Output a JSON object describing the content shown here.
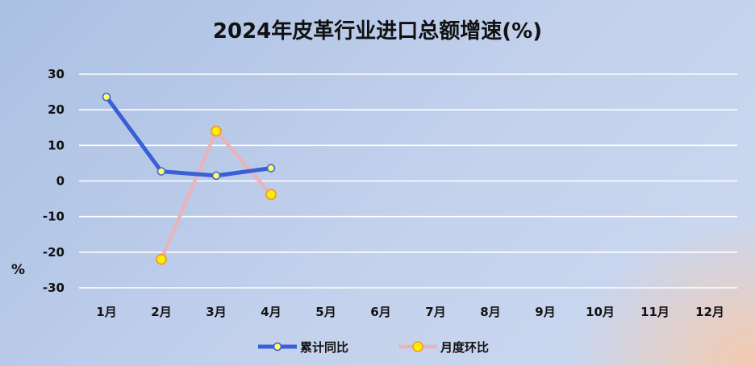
{
  "chart_data": {
    "type": "line",
    "title": "2024年皮革行业进口总额增速(%)",
    "ylabel": "%",
    "xlabel": "",
    "categories": [
      "1月",
      "2月",
      "3月",
      "4月",
      "5月",
      "6月",
      "7月",
      "8月",
      "9月",
      "10月",
      "11月",
      "12月"
    ],
    "yticks": [
      30,
      20,
      10,
      0,
      -10,
      -20,
      -30
    ],
    "ylim": [
      -30,
      30
    ],
    "grid": true,
    "legend_position": "bottom",
    "series": [
      {
        "name": "累计同比",
        "color": "#3a5fd6",
        "marker_fill": "#ffff66",
        "values": [
          23.6,
          2.7,
          1.5,
          3.6,
          null,
          null,
          null,
          null,
          null,
          null,
          null,
          null
        ]
      },
      {
        "name": "月度环比",
        "color": "#e8b4bc",
        "marker_fill": "#ffee00",
        "values": [
          null,
          -22.0,
          14.0,
          -3.8,
          null,
          null,
          null,
          null,
          null,
          null,
          null,
          null
        ]
      }
    ]
  }
}
